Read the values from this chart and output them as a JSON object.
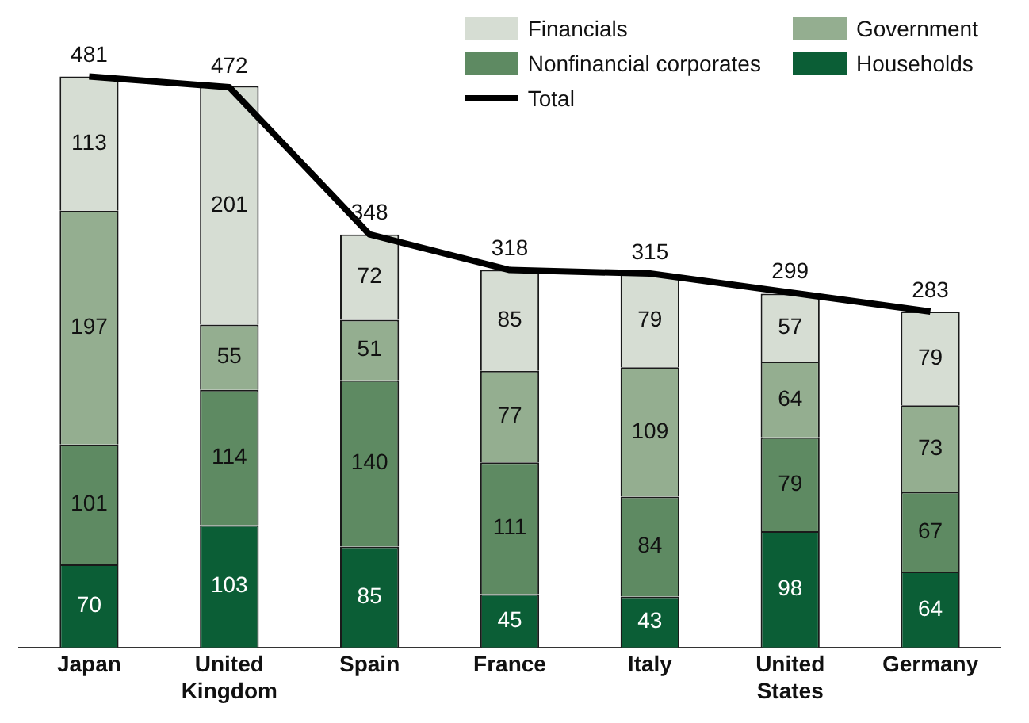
{
  "chart_data": {
    "type": "bar",
    "stacked": true,
    "categories": [
      "Japan",
      "United Kingdom",
      "Spain",
      "France",
      "Italy",
      "United States",
      "Germany"
    ],
    "series": [
      {
        "name": "Households",
        "color": "#0b5e36",
        "values": [
          70,
          103,
          85,
          45,
          43,
          98,
          64
        ]
      },
      {
        "name": "Nonfinancial corporates",
        "color": "#5e8a62",
        "values": [
          101,
          114,
          140,
          111,
          84,
          79,
          67
        ]
      },
      {
        "name": "Government",
        "color": "#94ae90",
        "values": [
          197,
          55,
          51,
          77,
          109,
          64,
          73
        ]
      },
      {
        "name": "Financials",
        "color": "#d6ddd3",
        "values": [
          113,
          201,
          72,
          85,
          79,
          57,
          79
        ]
      },
      {
        "name": "Total",
        "type": "line",
        "color": "#000000",
        "values": [
          481,
          472,
          348,
          318,
          315,
          299,
          283
        ]
      }
    ],
    "data_labels": true,
    "legend": "top right",
    "grid": false,
    "marker": "none"
  }
}
